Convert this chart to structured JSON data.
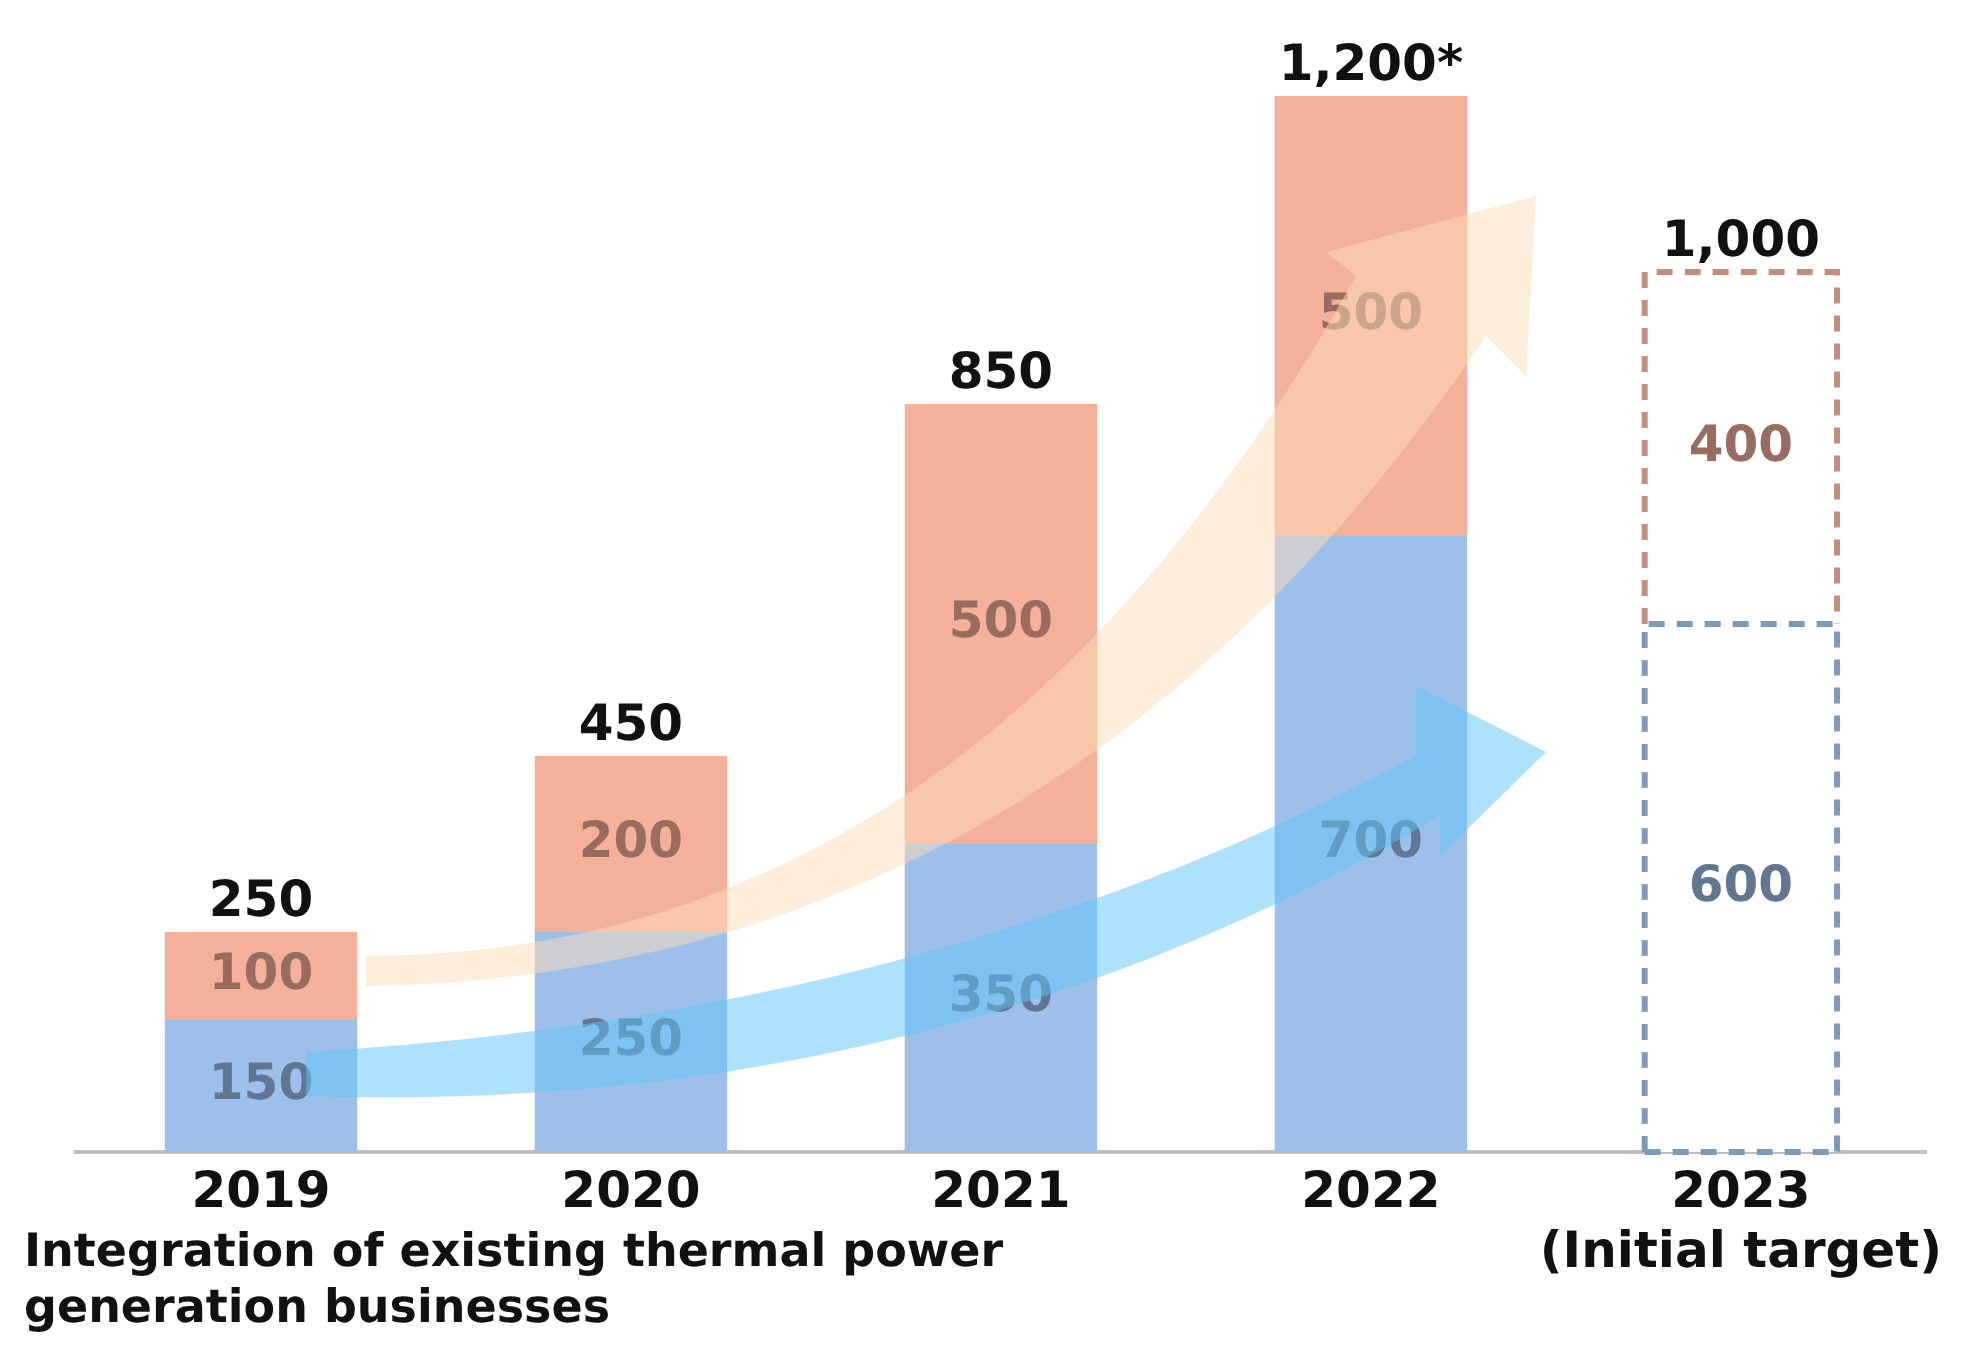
{
  "chart_data": {
    "type": "bar",
    "stacked": true,
    "categories": [
      "2019",
      "2020",
      "2021",
      "2022",
      "2023\n(Initial target)"
    ],
    "series": [
      {
        "color": "#9dc0ea",
        "colors": [
          "#9dc0ea",
          "#9dc0ea",
          "#9dc0ea",
          "#9dc0ea",
          "#ffffff"
        ],
        "values": [
          150,
          250,
          350,
          700,
          600
        ]
      },
      {
        "color": "#f5b09a",
        "colors": [
          "#f5b09a",
          "#f5b09a",
          "#f5b09a",
          "#f5b09a",
          "#ffffff"
        ],
        "values": [
          100,
          200,
          500,
          500,
          400
        ]
      }
    ],
    "data_labels": true,
    "totals": [
      "250",
      "450",
      "850",
      "1,200*",
      "1,000"
    ],
    "annotations": [
      "Integration of existing thermal power generation businesses"
    ],
    "grid": false,
    "legend": false
  }
}
